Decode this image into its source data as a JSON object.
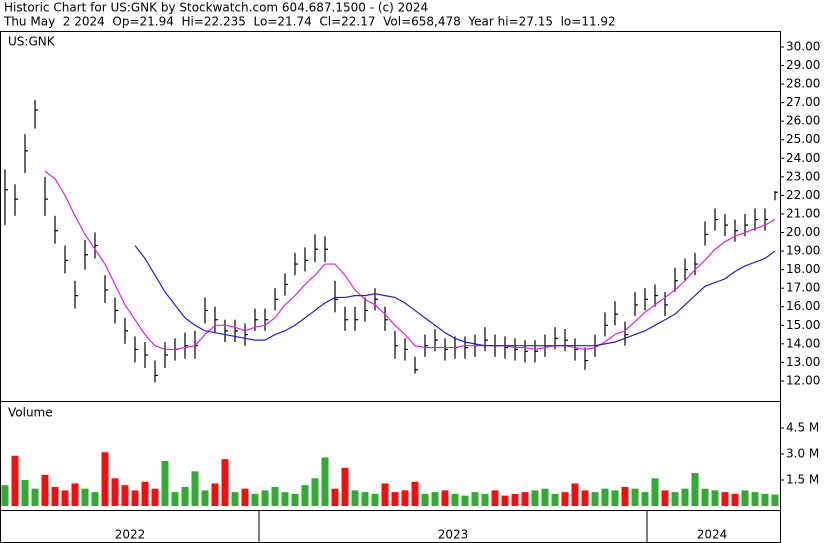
{
  "chart_data": {
    "type": "ohlc",
    "title": "Historic Chart for US:GNK by Stockwatch.com 604.687.1500 - (c) 2024",
    "subtitle": "Thu May  2 2024  Op=21.94  Hi=22.235  Lo=21.74  Cl=22.17  Vol=658,478  Year hi=27.15  lo=11.92",
    "symbol": "US:GNK",
    "volume_label": "Volume",
    "x_labels": [
      "2022",
      "2023",
      "2024"
    ],
    "ylim": [
      10.92,
      30.86
    ],
    "yticks": [
      {
        "value": 12,
        "label": "12.00"
      },
      {
        "value": 13,
        "label": "13.00"
      },
      {
        "value": 14,
        "label": "14.00"
      },
      {
        "value": 15,
        "label": "15.00"
      },
      {
        "value": 16,
        "label": "16.00"
      },
      {
        "value": 17,
        "label": "17.00"
      },
      {
        "value": 18,
        "label": "18.00"
      },
      {
        "value": 19,
        "label": "19.00"
      },
      {
        "value": 20,
        "label": "20.00"
      },
      {
        "value": 21,
        "label": "21.00"
      },
      {
        "value": 22,
        "label": "22.00"
      },
      {
        "value": 23,
        "label": "23.00"
      },
      {
        "value": 24,
        "label": "24.00"
      },
      {
        "value": 25,
        "label": "25.00"
      },
      {
        "value": 26,
        "label": "26.00"
      },
      {
        "value": 27,
        "label": "27.00"
      },
      {
        "value": 28,
        "label": "28.00"
      },
      {
        "value": 29,
        "label": "29.00"
      },
      {
        "value": 30,
        "label": "30.00"
      }
    ],
    "bar_color": "#000000",
    "high": [
      23.4,
      22.6,
      25.3,
      27.15,
      23.0,
      20.9,
      19.3,
      17.4,
      19.6,
      20.0,
      17.7,
      16.5,
      15.4,
      14.4,
      14.1,
      13.1,
      14.1,
      14.3,
      14.6,
      14.7,
      16.5,
      16.0,
      15.3,
      15.3,
      15.1,
      15.9,
      15.9,
      17.0,
      17.8,
      18.9,
      19.2,
      19.9,
      19.8,
      17.4,
      16.0,
      16.0,
      16.5,
      17.0,
      16.0,
      14.7,
      14.3,
      13.3,
      14.5,
      14.8,
      14.3,
      14.4,
      14.4,
      14.5,
      14.9,
      14.5,
      14.4,
      14.3,
      14.2,
      14.2,
      14.5,
      14.9,
      14.8,
      14.3,
      13.8,
      14.5,
      15.7,
      16.3,
      15.2,
      16.8,
      17.0,
      17.2,
      16.8,
      18.1,
      18.6,
      18.9,
      20.6,
      21.3,
      21.0,
      20.7,
      21.0,
      21.3,
      21.3,
      22.235
    ],
    "low": [
      20.4,
      20.9,
      23.2,
      25.6,
      20.9,
      19.4,
      17.8,
      15.9,
      18.0,
      18.6,
      16.2,
      15.1,
      14.0,
      13.0,
      12.7,
      11.92,
      12.7,
      13.1,
      13.2,
      13.2,
      15.1,
      14.6,
      14.1,
      14.1,
      13.9,
      14.7,
      14.7,
      15.8,
      16.6,
      17.7,
      17.9,
      18.4,
      18.4,
      15.7,
      14.7,
      14.7,
      15.2,
      15.8,
      14.7,
      13.2,
      13.1,
      12.4,
      13.3,
      13.6,
      13.1,
      13.2,
      13.2,
      13.3,
      13.6,
      13.3,
      13.2,
      13.1,
      13.0,
      13.0,
      13.3,
      13.7,
      13.6,
      13.1,
      12.6,
      13.3,
      14.4,
      15.0,
      13.9,
      15.5,
      15.8,
      16.0,
      15.5,
      16.8,
      17.4,
      17.7,
      19.3,
      20.1,
      19.8,
      19.5,
      19.8,
      20.1,
      20.1,
      21.74
    ],
    "close": [
      22.3,
      21.8,
      24.4,
      26.6,
      21.8,
      20.1,
      18.5,
      16.6,
      18.8,
      19.3,
      16.9,
      15.8,
      14.7,
      13.7,
      13.4,
      12.3,
      13.4,
      13.7,
      13.9,
      13.9,
      15.8,
      15.3,
      14.7,
      14.7,
      14.5,
      15.3,
      15.3,
      16.4,
      17.2,
      18.3,
      18.5,
      19.1,
      19.1,
      16.4,
      15.3,
      15.3,
      15.8,
      16.4,
      15.3,
      13.9,
      13.7,
      12.6,
      13.9,
      14.2,
      13.7,
      13.8,
      13.8,
      13.9,
      14.2,
      13.9,
      13.8,
      13.7,
      13.6,
      13.6,
      13.9,
      14.3,
      14.2,
      13.7,
      13.1,
      13.9,
      15.0,
      15.6,
      14.5,
      16.1,
      16.4,
      16.6,
      16.1,
      17.4,
      18.0,
      18.3,
      19.9,
      20.7,
      20.4,
      20.1,
      20.4,
      20.7,
      20.7,
      22.17
    ],
    "moving_averages": [
      {
        "color": "#e020e0",
        "values": [
          null,
          null,
          null,
          null,
          23.3,
          22.9,
          22.0,
          20.9,
          19.9,
          19.1,
          18.3,
          17.2,
          16.1,
          15.3,
          14.5,
          13.9,
          13.7,
          13.7,
          13.8,
          13.9,
          14.5,
          15.0,
          15.0,
          14.9,
          14.7,
          14.9,
          15.0,
          15.4,
          16.1,
          16.6,
          17.2,
          17.7,
          18.3,
          18.3,
          17.7,
          16.9,
          16.4,
          16.1,
          15.6,
          15.0,
          14.5,
          13.9,
          13.8,
          13.8,
          13.8,
          13.8,
          13.9,
          13.9,
          13.9,
          13.9,
          13.9,
          13.8,
          13.8,
          13.7,
          13.8,
          13.9,
          13.9,
          13.8,
          13.7,
          13.8,
          14.1,
          14.5,
          14.7,
          15.2,
          15.7,
          16.1,
          16.5,
          16.9,
          17.4,
          18.0,
          18.5,
          19.1,
          19.5,
          19.8,
          20.0,
          20.2,
          20.4,
          20.7
        ]
      },
      {
        "color": "#2020d0",
        "values": [
          null,
          null,
          null,
          null,
          null,
          null,
          null,
          null,
          null,
          null,
          null,
          null,
          null,
          19.3,
          18.6,
          17.7,
          16.8,
          16.1,
          15.4,
          15.0,
          14.7,
          14.6,
          14.5,
          14.4,
          14.3,
          14.2,
          14.2,
          14.5,
          14.7,
          15.0,
          15.4,
          15.8,
          16.2,
          16.5,
          16.5,
          16.6,
          16.6,
          16.7,
          16.6,
          16.5,
          16.2,
          15.8,
          15.4,
          15.0,
          14.6,
          14.3,
          14.1,
          14.0,
          13.9,
          13.9,
          13.9,
          13.9,
          13.9,
          13.9,
          13.9,
          13.9,
          13.9,
          13.9,
          13.9,
          13.9,
          14.0,
          14.1,
          14.3,
          14.5,
          14.7,
          15.0,
          15.3,
          15.6,
          16.1,
          16.6,
          17.1,
          17.3,
          17.5,
          17.9,
          18.2,
          18.4,
          18.6,
          19.0
        ]
      }
    ],
    "volume": {
      "up_color": "#33aa33",
      "down_color": "#ee1111",
      "ylim": [
        0,
        6.0
      ],
      "yticks": [
        {
          "value": 1.5,
          "label": "1.5 M"
        },
        {
          "value": 3.0,
          "label": "3.0 M"
        },
        {
          "value": 4.5,
          "label": "4.5 M"
        }
      ],
      "values": [
        1.2,
        2.9,
        1.5,
        1.0,
        1.8,
        1.1,
        0.9,
        1.3,
        1.0,
        0.8,
        3.1,
        1.6,
        1.2,
        0.9,
        1.4,
        1.0,
        2.6,
        0.8,
        1.1,
        2.0,
        0.9,
        1.3,
        2.7,
        0.8,
        1.0,
        0.7,
        0.9,
        1.1,
        0.8,
        0.7,
        1.2,
        1.6,
        2.8,
        1.0,
        2.2,
        0.9,
        0.8,
        0.7,
        1.3,
        0.8,
        0.9,
        1.4,
        0.7,
        0.8,
        0.9,
        0.7,
        0.6,
        0.8,
        0.7,
        0.9,
        0.6,
        0.7,
        0.8,
        0.9,
        1.0,
        0.7,
        0.8,
        1.3,
        0.9,
        0.8,
        1.0,
        0.9,
        1.1,
        1.0,
        0.8,
        1.6,
        0.9,
        0.8,
        1.0,
        1.9,
        1.0,
        0.9,
        0.8,
        0.7,
        0.9,
        0.8,
        0.7,
        0.66
      ]
    }
  }
}
